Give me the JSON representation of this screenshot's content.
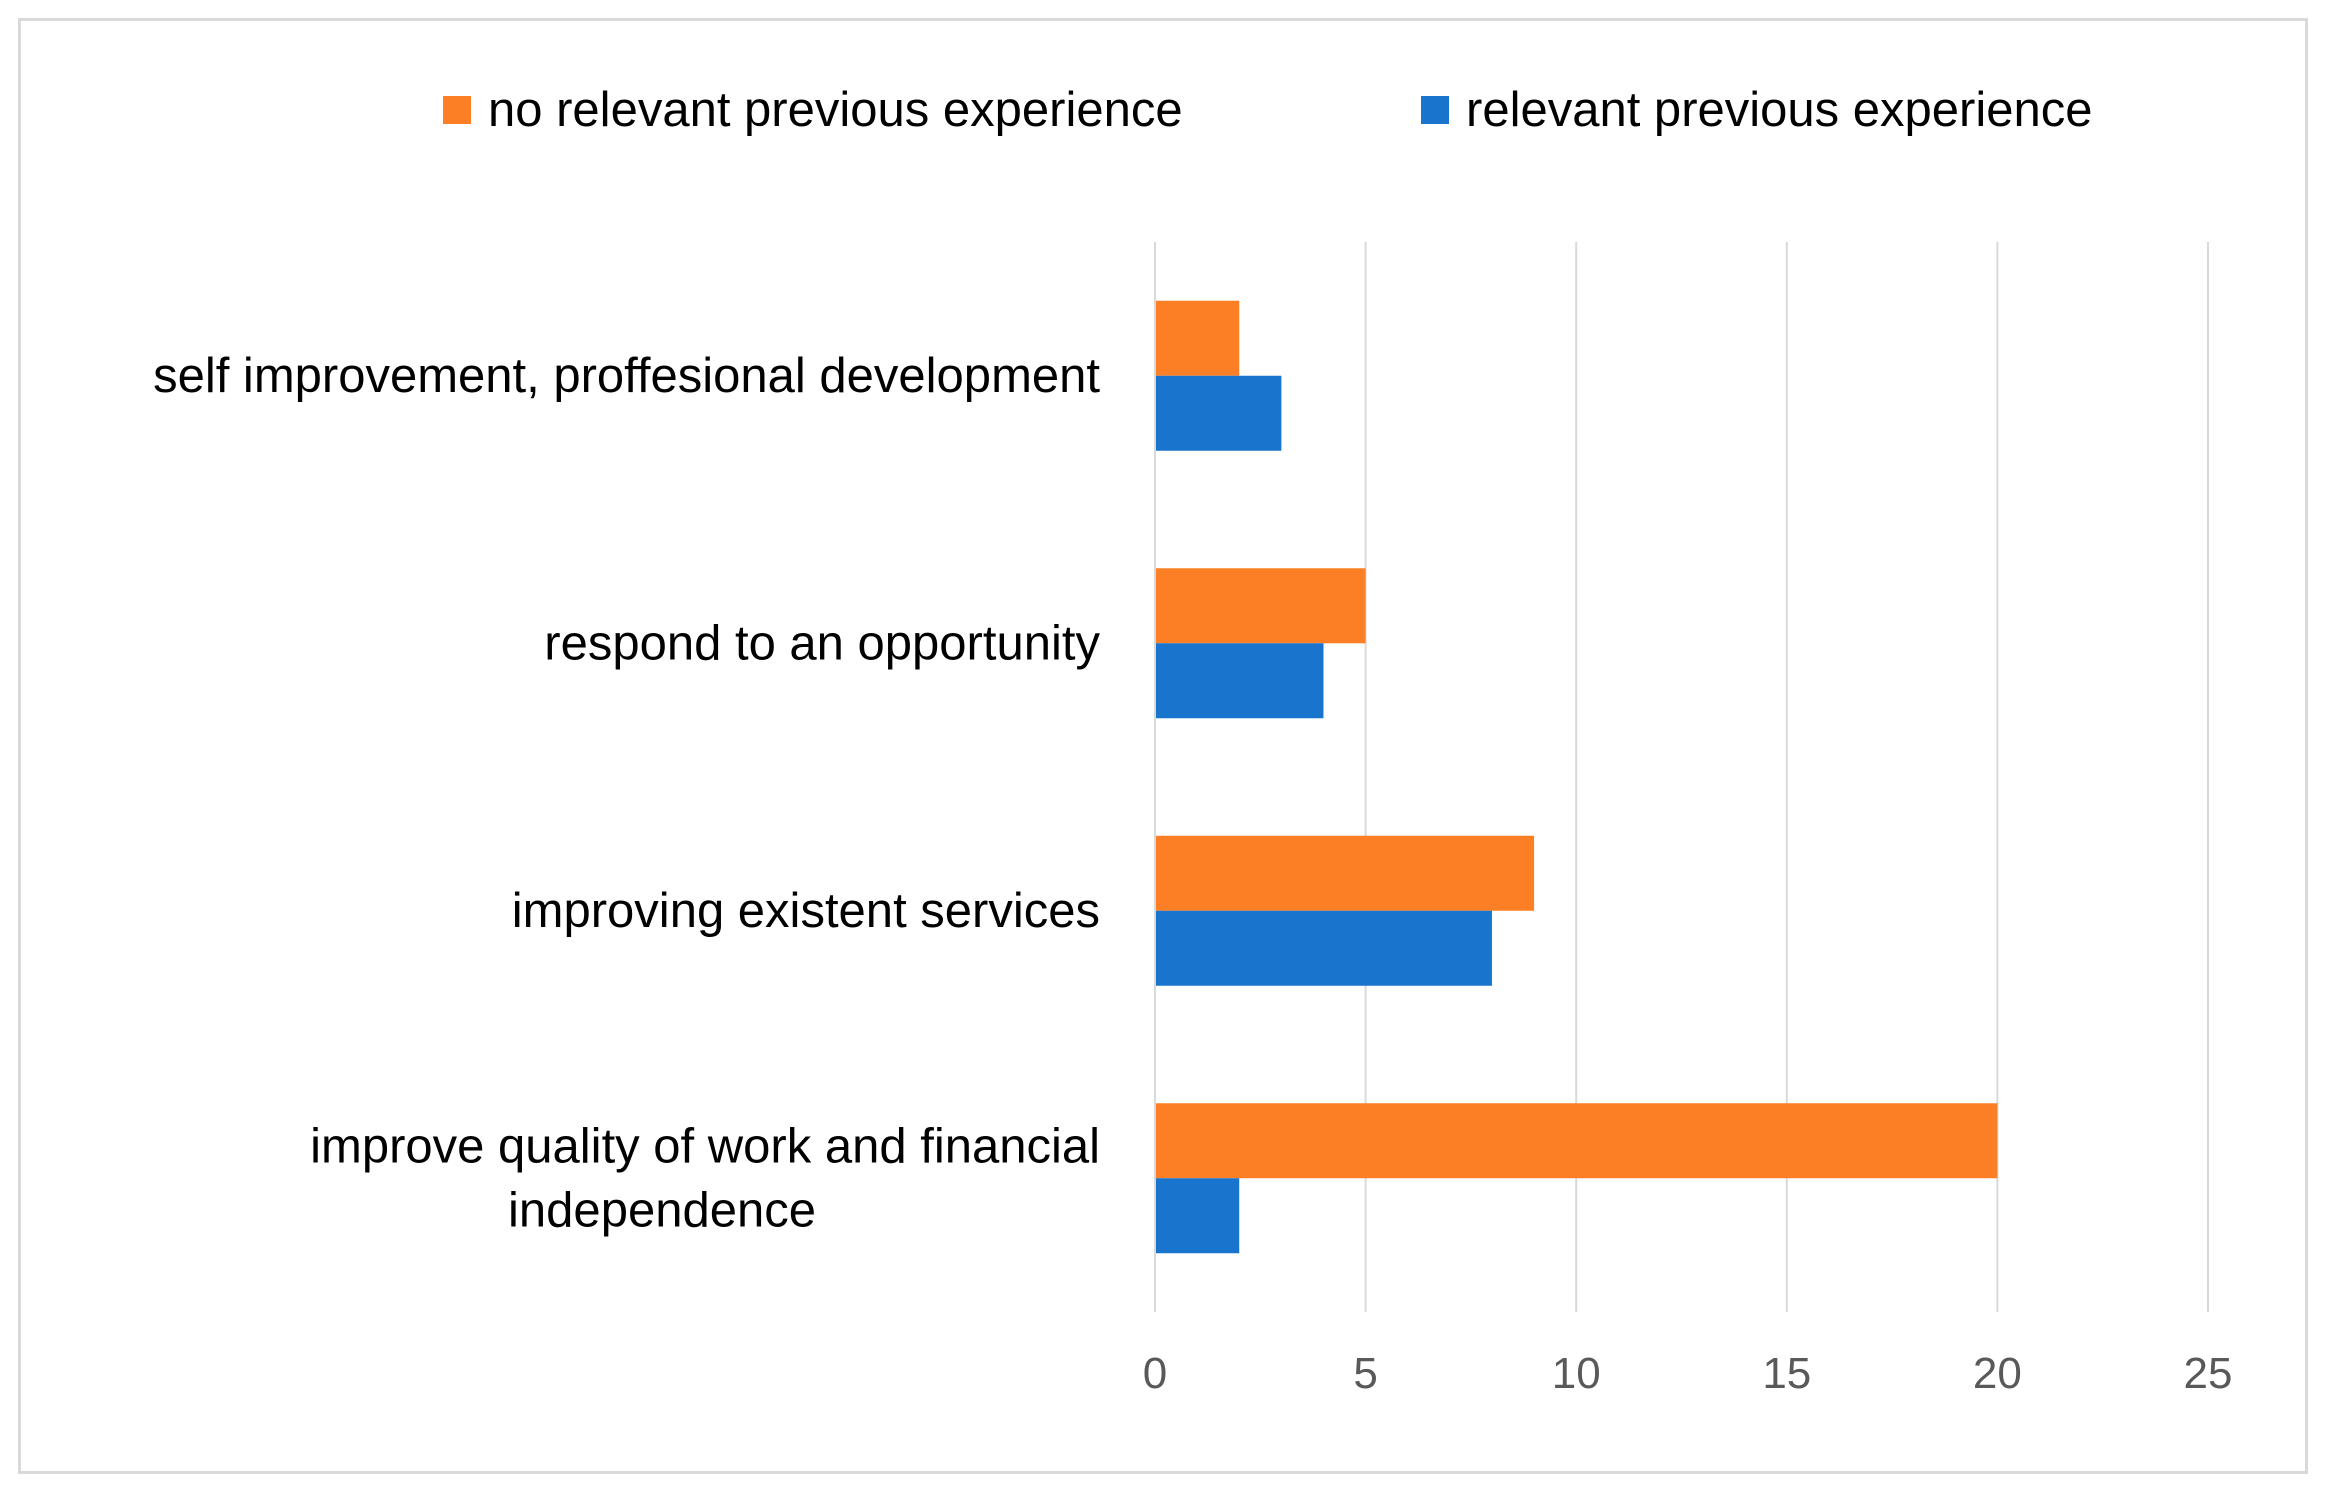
{
  "chart_data": {
    "type": "bar",
    "orientation": "horizontal",
    "title": "",
    "xlabel": "",
    "ylabel": "",
    "categories": [
      [
        "self improvement, proffesional development"
      ],
      [
        "respond to an opportunity"
      ],
      [
        "improving existent services"
      ],
      [
        "improve quality of work and financial",
        "independence"
      ]
    ],
    "series": [
      {
        "name": "no relevant previous experience",
        "color": "#fd7f25",
        "values": [
          2,
          5,
          9,
          20
        ]
      },
      {
        "name": "relevant previous experience",
        "color": "#1874cd",
        "values": [
          3,
          4,
          8,
          2
        ]
      }
    ],
    "xlim": [
      0,
      25
    ],
    "xticks": [
      0,
      5,
      10,
      15,
      20,
      25
    ],
    "grid": "vertical",
    "legend_position": "top"
  }
}
